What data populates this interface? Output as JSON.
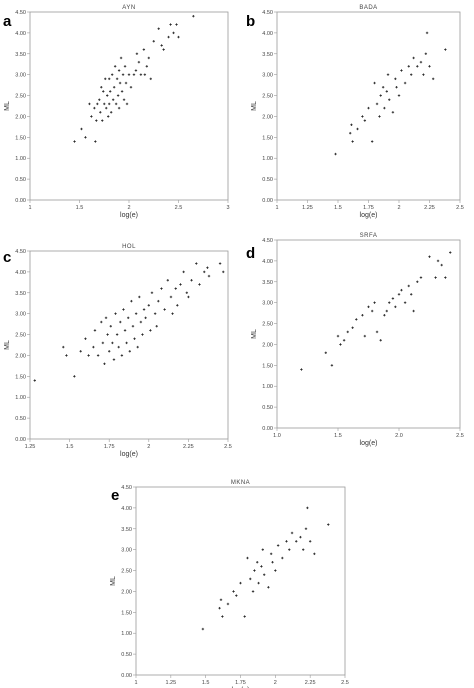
{
  "chart_data": [
    {
      "panel": "a",
      "title": "AYN",
      "type": "scatter",
      "xlabel": "log(e)",
      "ylabel": "ML",
      "xlim": [
        1,
        3
      ],
      "ylim": [
        0,
        4.5
      ],
      "xticks": [
        "1",
        "1.5",
        "2",
        "2.5",
        "3"
      ],
      "yticks": [
        "0.00",
        "0.50",
        "1.00",
        "1.50",
        "2.00",
        "2.50",
        "3.00",
        "3.50",
        "4.00",
        "4.50"
      ],
      "points": [
        [
          1.45,
          1.4
        ],
        [
          1.52,
          1.7
        ],
        [
          1.56,
          1.5
        ],
        [
          1.6,
          2.3
        ],
        [
          1.62,
          2.0
        ],
        [
          1.65,
          2.2
        ],
        [
          1.66,
          1.4
        ],
        [
          1.67,
          1.9
        ],
        [
          1.68,
          2.3
        ],
        [
          1.7,
          2.4
        ],
        [
          1.71,
          2.1
        ],
        [
          1.72,
          2.7
        ],
        [
          1.73,
          1.9
        ],
        [
          1.74,
          2.6
        ],
        [
          1.75,
          2.3
        ],
        [
          1.76,
          2.9
        ],
        [
          1.77,
          2.2
        ],
        [
          1.78,
          2.5
        ],
        [
          1.79,
          2.0
        ],
        [
          1.8,
          2.9
        ],
        [
          1.8,
          2.3
        ],
        [
          1.81,
          2.6
        ],
        [
          1.82,
          2.1
        ],
        [
          1.83,
          3.0
        ],
        [
          1.84,
          2.4
        ],
        [
          1.85,
          2.7
        ],
        [
          1.86,
          3.2
        ],
        [
          1.87,
          2.3
        ],
        [
          1.88,
          2.9
        ],
        [
          1.89,
          2.5
        ],
        [
          1.9,
          3.1
        ],
        [
          1.9,
          2.2
        ],
        [
          1.91,
          2.8
        ],
        [
          1.92,
          3.4
        ],
        [
          1.93,
          2.6
        ],
        [
          1.94,
          3.0
        ],
        [
          1.95,
          2.4
        ],
        [
          1.96,
          3.2
        ],
        [
          1.97,
          2.8
        ],
        [
          1.98,
          2.3
        ],
        [
          2.0,
          3.0
        ],
        [
          2.02,
          2.7
        ],
        [
          2.05,
          3.0
        ],
        [
          2.07,
          3.1
        ],
        [
          2.08,
          3.5
        ],
        [
          2.1,
          3.3
        ],
        [
          2.12,
          3.0
        ],
        [
          2.15,
          3.6
        ],
        [
          2.16,
          3.0
        ],
        [
          2.18,
          3.2
        ],
        [
          2.2,
          3.4
        ],
        [
          2.22,
          2.9
        ],
        [
          2.25,
          3.8
        ],
        [
          2.3,
          4.1
        ],
        [
          2.33,
          3.7
        ],
        [
          2.35,
          3.6
        ],
        [
          2.4,
          3.9
        ],
        [
          2.42,
          4.2
        ],
        [
          2.45,
          4.0
        ],
        [
          2.48,
          4.2
        ],
        [
          2.5,
          3.9
        ],
        [
          2.65,
          4.4
        ]
      ]
    },
    {
      "panel": "b",
      "title": "BADA",
      "type": "scatter",
      "xlabel": "log(e)",
      "ylabel": "ML",
      "xlim": [
        1,
        2.5
      ],
      "ylim": [
        0,
        4.5
      ],
      "xticks": [
        "1",
        "1.25",
        "1.5",
        "1.75",
        "2",
        "2.25",
        "2.5"
      ],
      "yticks": [
        "0.00",
        "0.50",
        "1.00",
        "1.50",
        "2.00",
        "2.50",
        "3.00",
        "3.50",
        "4.00",
        "4.50"
      ],
      "points": [
        [
          1.48,
          1.1
        ],
        [
          1.6,
          1.6
        ],
        [
          1.61,
          1.8
        ],
        [
          1.62,
          1.4
        ],
        [
          1.66,
          1.7
        ],
        [
          1.7,
          2.0
        ],
        [
          1.72,
          1.9
        ],
        [
          1.75,
          2.2
        ],
        [
          1.78,
          1.4
        ],
        [
          1.8,
          2.8
        ],
        [
          1.82,
          2.3
        ],
        [
          1.84,
          2.0
        ],
        [
          1.85,
          2.5
        ],
        [
          1.87,
          2.7
        ],
        [
          1.88,
          2.2
        ],
        [
          1.9,
          2.6
        ],
        [
          1.91,
          3.0
        ],
        [
          1.92,
          2.4
        ],
        [
          1.95,
          2.1
        ],
        [
          1.97,
          2.9
        ],
        [
          1.98,
          2.7
        ],
        [
          2.0,
          2.5
        ],
        [
          2.02,
          3.1
        ],
        [
          2.05,
          2.8
        ],
        [
          2.08,
          3.2
        ],
        [
          2.1,
          3.0
        ],
        [
          2.12,
          3.4
        ],
        [
          2.15,
          3.2
        ],
        [
          2.18,
          3.3
        ],
        [
          2.2,
          3.0
        ],
        [
          2.22,
          3.5
        ],
        [
          2.23,
          4.0
        ],
        [
          2.25,
          3.2
        ],
        [
          2.28,
          2.9
        ],
        [
          2.38,
          3.6
        ]
      ]
    },
    {
      "panel": "c",
      "title": "HOL",
      "type": "scatter",
      "xlabel": "log(e)",
      "ylabel": "ML",
      "xlim": [
        1.25,
        2.5
      ],
      "ylim": [
        0,
        4.5
      ],
      "xticks": [
        "1.25",
        "1.5",
        "1.75",
        "2",
        "2.25",
        "2.5"
      ],
      "yticks": [
        "0.00",
        "0.50",
        "1.00",
        "1.50",
        "2.00",
        "2.50",
        "3.00",
        "3.50",
        "4.00",
        "4.50"
      ],
      "points": [
        [
          1.28,
          1.4
        ],
        [
          1.46,
          2.2
        ],
        [
          1.48,
          2.0
        ],
        [
          1.53,
          1.5
        ],
        [
          1.57,
          2.1
        ],
        [
          1.6,
          2.4
        ],
        [
          1.62,
          2.0
        ],
        [
          1.65,
          2.2
        ],
        [
          1.66,
          2.6
        ],
        [
          1.68,
          2.0
        ],
        [
          1.7,
          2.8
        ],
        [
          1.71,
          2.3
        ],
        [
          1.72,
          1.8
        ],
        [
          1.73,
          2.9
        ],
        [
          1.74,
          2.5
        ],
        [
          1.75,
          2.1
        ],
        [
          1.76,
          2.7
        ],
        [
          1.77,
          2.3
        ],
        [
          1.78,
          1.9
        ],
        [
          1.79,
          3.0
        ],
        [
          1.8,
          2.5
        ],
        [
          1.81,
          2.2
        ],
        [
          1.82,
          2.8
        ],
        [
          1.83,
          2.0
        ],
        [
          1.84,
          3.1
        ],
        [
          1.85,
          2.6
        ],
        [
          1.86,
          2.3
        ],
        [
          1.87,
          2.9
        ],
        [
          1.88,
          2.1
        ],
        [
          1.89,
          3.3
        ],
        [
          1.9,
          2.7
        ],
        [
          1.91,
          2.4
        ],
        [
          1.92,
          3.0
        ],
        [
          1.93,
          2.2
        ],
        [
          1.94,
          3.4
        ],
        [
          1.95,
          2.8
        ],
        [
          1.96,
          2.5
        ],
        [
          1.97,
          3.1
        ],
        [
          1.98,
          2.9
        ],
        [
          2.0,
          3.2
        ],
        [
          2.01,
          2.6
        ],
        [
          2.02,
          3.5
        ],
        [
          2.04,
          3.0
        ],
        [
          2.05,
          2.7
        ],
        [
          2.06,
          3.3
        ],
        [
          2.08,
          3.6
        ],
        [
          2.1,
          3.1
        ],
        [
          2.12,
          3.8
        ],
        [
          2.14,
          3.4
        ],
        [
          2.15,
          3.0
        ],
        [
          2.17,
          3.6
        ],
        [
          2.18,
          3.2
        ],
        [
          2.2,
          3.7
        ],
        [
          2.22,
          4.0
        ],
        [
          2.24,
          3.5
        ],
        [
          2.25,
          3.4
        ],
        [
          2.27,
          3.8
        ],
        [
          2.3,
          4.2
        ],
        [
          2.32,
          3.7
        ],
        [
          2.35,
          4.0
        ],
        [
          2.37,
          4.1
        ],
        [
          2.38,
          3.9
        ],
        [
          2.45,
          4.2
        ],
        [
          2.47,
          4.0
        ]
      ]
    },
    {
      "panel": "d",
      "title": "SRFA",
      "type": "scatter",
      "xlabel": "log(e)",
      "ylabel": "ML",
      "xlim": [
        1,
        2.5
      ],
      "ylim": [
        0,
        4.5
      ],
      "xticks": [
        "1.0",
        "1.5",
        "2.0",
        "2.5"
      ],
      "yticks": [
        "0.00",
        "0.50",
        "1.00",
        "1.50",
        "2.00",
        "2.50",
        "3.00",
        "3.50",
        "4.00",
        "4.50"
      ],
      "points": [
        [
          1.2,
          1.4
        ],
        [
          1.4,
          1.8
        ],
        [
          1.45,
          1.5
        ],
        [
          1.5,
          2.2
        ],
        [
          1.52,
          2.0
        ],
        [
          1.55,
          2.1
        ],
        [
          1.58,
          2.3
        ],
        [
          1.62,
          2.4
        ],
        [
          1.65,
          2.6
        ],
        [
          1.7,
          2.7
        ],
        [
          1.72,
          2.2
        ],
        [
          1.75,
          2.9
        ],
        [
          1.78,
          2.8
        ],
        [
          1.8,
          3.0
        ],
        [
          1.82,
          2.3
        ],
        [
          1.85,
          2.1
        ],
        [
          1.88,
          2.7
        ],
        [
          1.9,
          2.8
        ],
        [
          1.92,
          3.0
        ],
        [
          1.95,
          3.1
        ],
        [
          1.97,
          2.9
        ],
        [
          2.0,
          3.2
        ],
        [
          2.02,
          3.3
        ],
        [
          2.05,
          3.0
        ],
        [
          2.08,
          3.4
        ],
        [
          2.1,
          3.2
        ],
        [
          2.12,
          2.8
        ],
        [
          2.15,
          3.5
        ],
        [
          2.18,
          3.6
        ],
        [
          2.25,
          4.1
        ],
        [
          2.3,
          3.6
        ],
        [
          2.32,
          4.0
        ],
        [
          2.35,
          3.9
        ],
        [
          2.38,
          3.6
        ],
        [
          2.42,
          4.2
        ]
      ]
    },
    {
      "panel": "e",
      "title": "MKNA",
      "type": "scatter",
      "xlabel": "log(e)",
      "ylabel": "ML",
      "xlim": [
        1,
        2.5
      ],
      "ylim": [
        0,
        4.5
      ],
      "xticks": [
        "1",
        "1.25",
        "1.5",
        "1.75",
        "2",
        "2.25",
        "2.5"
      ],
      "yticks": [
        "0.00",
        "0.50",
        "1.00",
        "1.50",
        "2.00",
        "2.50",
        "3.00",
        "3.50",
        "4.00",
        "4.50"
      ],
      "points": [
        [
          1.48,
          1.1
        ],
        [
          1.6,
          1.6
        ],
        [
          1.61,
          1.8
        ],
        [
          1.62,
          1.4
        ],
        [
          1.66,
          1.7
        ],
        [
          1.7,
          2.0
        ],
        [
          1.72,
          1.9
        ],
        [
          1.75,
          2.2
        ],
        [
          1.78,
          1.4
        ],
        [
          1.8,
          2.8
        ],
        [
          1.82,
          2.3
        ],
        [
          1.84,
          2.0
        ],
        [
          1.85,
          2.5
        ],
        [
          1.87,
          2.7
        ],
        [
          1.88,
          2.2
        ],
        [
          1.9,
          2.6
        ],
        [
          1.91,
          3.0
        ],
        [
          1.92,
          2.4
        ],
        [
          1.95,
          2.1
        ],
        [
          1.97,
          2.9
        ],
        [
          1.98,
          2.7
        ],
        [
          2.0,
          2.5
        ],
        [
          2.02,
          3.1
        ],
        [
          2.05,
          2.8
        ],
        [
          2.08,
          3.2
        ],
        [
          2.1,
          3.0
        ],
        [
          2.12,
          3.4
        ],
        [
          2.15,
          3.2
        ],
        [
          2.18,
          3.3
        ],
        [
          2.2,
          3.0
        ],
        [
          2.22,
          3.5
        ],
        [
          2.23,
          4.0
        ],
        [
          2.25,
          3.2
        ],
        [
          2.28,
          2.9
        ],
        [
          2.38,
          3.6
        ]
      ]
    }
  ]
}
